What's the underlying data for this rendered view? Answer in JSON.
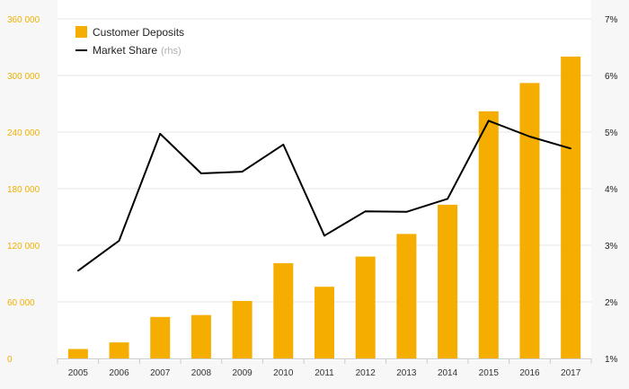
{
  "chart_data": {
    "type": "bar",
    "title": "",
    "categories": [
      "2005",
      "2006",
      "2007",
      "2008",
      "2009",
      "2010",
      "2011",
      "2012",
      "2013",
      "2014",
      "2015",
      "2016",
      "2017"
    ],
    "series": [
      {
        "name": "Customer Deposits",
        "type": "bar",
        "axis": "left",
        "color": "#f5ad00",
        "values": [
          10000,
          17000,
          44000,
          46000,
          61000,
          101000,
          76000,
          108000,
          132000,
          163000,
          262000,
          292000,
          320000
        ]
      },
      {
        "name": "Market Share",
        "name_suffix": "(rhs)",
        "type": "line",
        "axis": "right",
        "color": "#000000",
        "values": [
          2.55,
          3.08,
          4.97,
          4.27,
          4.3,
          4.78,
          3.17,
          3.6,
          3.59,
          3.82,
          5.2,
          4.92,
          4.71
        ]
      }
    ],
    "y_left": {
      "ylim": [
        0,
        360000
      ],
      "ticks": [
        0,
        60000,
        120000,
        180000,
        240000,
        300000,
        360000
      ],
      "tick_labels": [
        "0",
        "60 000",
        "120 000",
        "180 000",
        "240 000",
        "300 000",
        "360 000"
      ]
    },
    "y_right": {
      "ylim": [
        1,
        7
      ],
      "ticks": [
        1,
        2,
        3,
        4,
        5,
        6,
        7
      ],
      "tick_labels": [
        "1%",
        "2%",
        "3%",
        "4%",
        "5%",
        "6%",
        "7%"
      ]
    },
    "legend_position": "top-left",
    "grid": true
  }
}
